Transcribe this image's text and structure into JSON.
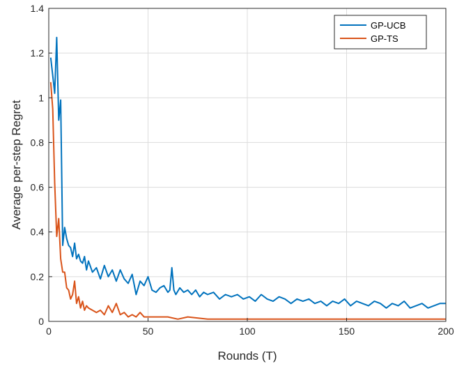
{
  "chart_data": {
    "type": "line",
    "title": "",
    "xlabel": "Rounds (T)",
    "ylabel": "Average per-step Regret",
    "xlim": [
      0,
      200
    ],
    "ylim": [
      0,
      1.4
    ],
    "xticks": [
      0,
      50,
      100,
      150,
      200
    ],
    "yticks": [
      0,
      0.2,
      0.4,
      0.6,
      0.8,
      1,
      1.2,
      1.4
    ],
    "xtick_labels": [
      "0",
      "50",
      "100",
      "150",
      "200"
    ],
    "ytick_labels": [
      "0",
      "0.2",
      "0.4",
      "0.6",
      "0.8",
      "1",
      "1.2",
      "1.4"
    ],
    "grid": true,
    "legend_position": "top-right",
    "series": [
      {
        "name": "GP-UCB",
        "color": "#0072BD",
        "x": [
          1,
          2,
          3,
          4,
          5,
          6,
          7,
          8,
          9,
          10,
          11,
          12,
          13,
          14,
          15,
          16,
          17,
          18,
          19,
          20,
          22,
          24,
          26,
          28,
          30,
          32,
          34,
          36,
          38,
          40,
          42,
          44,
          46,
          48,
          50,
          52,
          54,
          56,
          58,
          60,
          61,
          62,
          63,
          64,
          66,
          68,
          70,
          72,
          74,
          76,
          78,
          80,
          83,
          86,
          89,
          92,
          95,
          98,
          101,
          104,
          107,
          110,
          113,
          116,
          119,
          122,
          125,
          128,
          131,
          134,
          137,
          140,
          143,
          146,
          149,
          152,
          155,
          158,
          161,
          164,
          167,
          170,
          173,
          176,
          179,
          182,
          185,
          188,
          191,
          194,
          197,
          200
        ],
        "y": [
          1.18,
          1.1,
          1.02,
          1.27,
          0.9,
          0.99,
          0.34,
          0.42,
          0.37,
          0.34,
          0.33,
          0.29,
          0.35,
          0.28,
          0.3,
          0.27,
          0.26,
          0.29,
          0.23,
          0.27,
          0.22,
          0.24,
          0.19,
          0.25,
          0.2,
          0.23,
          0.18,
          0.23,
          0.19,
          0.17,
          0.21,
          0.12,
          0.18,
          0.16,
          0.2,
          0.14,
          0.13,
          0.15,
          0.16,
          0.13,
          0.14,
          0.24,
          0.14,
          0.12,
          0.15,
          0.13,
          0.14,
          0.12,
          0.14,
          0.11,
          0.13,
          0.12,
          0.13,
          0.1,
          0.12,
          0.11,
          0.12,
          0.1,
          0.11,
          0.09,
          0.12,
          0.1,
          0.09,
          0.11,
          0.1,
          0.08,
          0.1,
          0.09,
          0.1,
          0.08,
          0.09,
          0.07,
          0.09,
          0.08,
          0.1,
          0.07,
          0.09,
          0.08,
          0.07,
          0.09,
          0.08,
          0.06,
          0.08,
          0.07,
          0.09,
          0.06,
          0.07,
          0.08,
          0.06,
          0.07,
          0.08,
          0.08
        ]
      },
      {
        "name": "GP-TS",
        "color": "#D95319",
        "x": [
          1,
          2,
          3,
          4,
          5,
          6,
          7,
          8,
          9,
          10,
          11,
          12,
          13,
          14,
          15,
          16,
          17,
          18,
          19,
          20,
          22,
          24,
          26,
          28,
          30,
          32,
          34,
          36,
          38,
          40,
          42,
          44,
          46,
          48,
          50,
          55,
          60,
          65,
          70,
          80,
          90,
          100,
          110,
          120,
          130,
          140,
          150,
          160,
          170,
          180,
          190,
          200
        ],
        "y": [
          1.07,
          0.95,
          0.62,
          0.38,
          0.46,
          0.28,
          0.22,
          0.22,
          0.15,
          0.14,
          0.1,
          0.12,
          0.18,
          0.08,
          0.11,
          0.06,
          0.09,
          0.05,
          0.07,
          0.06,
          0.05,
          0.04,
          0.05,
          0.03,
          0.07,
          0.04,
          0.08,
          0.03,
          0.04,
          0.02,
          0.03,
          0.02,
          0.04,
          0.02,
          0.02,
          0.02,
          0.02,
          0.01,
          0.02,
          0.01,
          0.01,
          0.01,
          0.01,
          0.01,
          0.01,
          0.01,
          0.01,
          0.01,
          0.01,
          0.01,
          0.01,
          0.01
        ]
      }
    ]
  }
}
